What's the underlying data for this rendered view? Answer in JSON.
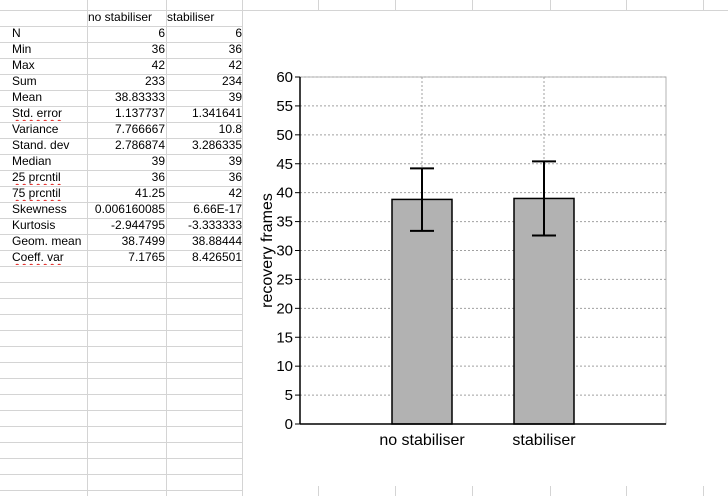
{
  "table": {
    "headers": [
      "no stabiliser",
      "stabiliser"
    ],
    "rows": [
      {
        "label": "N",
        "v1": "6",
        "v2": "6",
        "squiggle": false
      },
      {
        "label": "Min",
        "v1": "36",
        "v2": "36",
        "squiggle": false
      },
      {
        "label": "Max",
        "v1": "42",
        "v2": "42",
        "squiggle": false
      },
      {
        "label": "Sum",
        "v1": "233",
        "v2": "234",
        "squiggle": false
      },
      {
        "label": "Mean",
        "v1": "38.83333",
        "v2": "39",
        "squiggle": false
      },
      {
        "label": "Std. error",
        "v1": "1.137737",
        "v2": "1.341641",
        "squiggle": true
      },
      {
        "label": "Variance",
        "v1": "7.766667",
        "v2": "10.8",
        "squiggle": false
      },
      {
        "label": "Stand. dev",
        "v1": "2.786874",
        "v2": "3.286335",
        "squiggle": false
      },
      {
        "label": "Median",
        "v1": "39",
        "v2": "39",
        "squiggle": false
      },
      {
        "label": "25 prcntil",
        "v1": "36",
        "v2": "36",
        "squiggle": true
      },
      {
        "label": "75 prcntil",
        "v1": "41.25",
        "v2": "42",
        "squiggle": true
      },
      {
        "label": "Skewness",
        "v1": "0.006160085",
        "v2": "6.66E-17",
        "squiggle": false
      },
      {
        "label": "Kurtosis",
        "v1": "-2.944795",
        "v2": "-3.333333",
        "squiggle": false
      },
      {
        "label": "Geom. mean",
        "v1": "38.7499",
        "v2": "38.88444",
        "squiggle": false
      },
      {
        "label": "Coeff. var",
        "v1": "7.1765",
        "v2": "8.426501",
        "squiggle": true
      }
    ]
  },
  "chart_data": {
    "type": "bar",
    "categories": [
      "no stabiliser",
      "stabiliser"
    ],
    "values": [
      38.83333,
      39
    ],
    "error_low": [
      33.4,
      32.6
    ],
    "error_high": [
      44.2,
      45.4
    ],
    "ylabel": "recovery frames",
    "xlabel": "",
    "ylim": [
      0,
      60
    ],
    "yticks": [
      0,
      5,
      10,
      15,
      20,
      25,
      30,
      35,
      40,
      45,
      50,
      55,
      60
    ],
    "grid": true,
    "bar_color": "#b2b2b2"
  }
}
